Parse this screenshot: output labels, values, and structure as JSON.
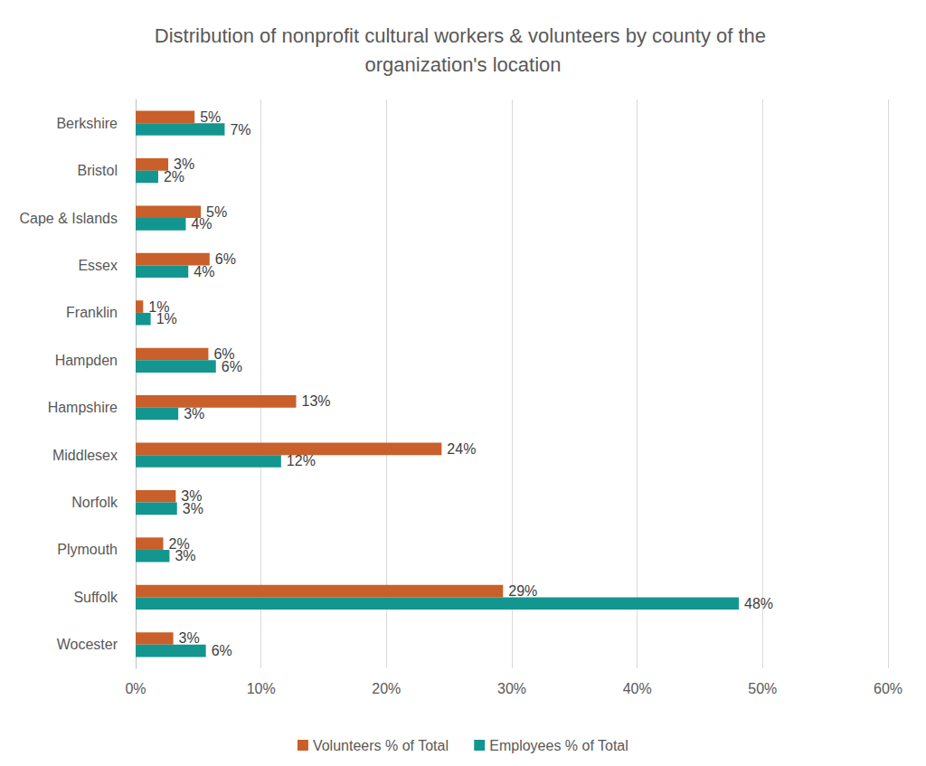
{
  "chart_data": {
    "type": "bar",
    "title": "Distribution of nonprofit cultural workers & volunteers by county of the organization's location",
    "orientation": "horizontal",
    "categories": [
      "Berkshire",
      "Bristol",
      "Cape & Islands",
      "Essex",
      "Franklin",
      "Hampden",
      "Hampshire",
      "Middlesex",
      "Norfolk",
      "Plymouth",
      "Suffolk",
      "Wocester"
    ],
    "series": [
      {
        "name": "Volunteers % of Total",
        "color": "#c95f2a",
        "values": [
          4.7,
          2.6,
          5.2,
          5.9,
          0.6,
          5.8,
          12.8,
          24.4,
          3.2,
          2.2,
          29.3,
          3.0
        ],
        "value_labels": [
          "5%",
          "3%",
          "5%",
          "6%",
          "1%",
          "6%",
          "13%",
          "24%",
          "3%",
          "2%",
          "29%",
          "3%"
        ]
      },
      {
        "name": "Employees % of Total",
        "color": "#139690",
        "values": [
          7.1,
          1.8,
          4.0,
          4.2,
          1.2,
          6.4,
          3.4,
          11.6,
          3.3,
          2.7,
          48.1,
          5.6
        ],
        "value_labels": [
          "7%",
          "2%",
          "4%",
          "4%",
          "1%",
          "6%",
          "3%",
          "12%",
          "3%",
          "3%",
          "48%",
          "6%"
        ]
      }
    ],
    "xlim": [
      0,
      60
    ],
    "xticks": [
      {
        "value": 0,
        "label": "0%"
      },
      {
        "value": 10,
        "label": "10%"
      },
      {
        "value": 20,
        "label": "20%"
      },
      {
        "value": 30,
        "label": "30%"
      },
      {
        "value": 40,
        "label": "40%"
      },
      {
        "value": 50,
        "label": "50%"
      },
      {
        "value": 60,
        "label": "60%"
      }
    ],
    "grid": true,
    "legend": "bottom",
    "data_labels": true
  }
}
